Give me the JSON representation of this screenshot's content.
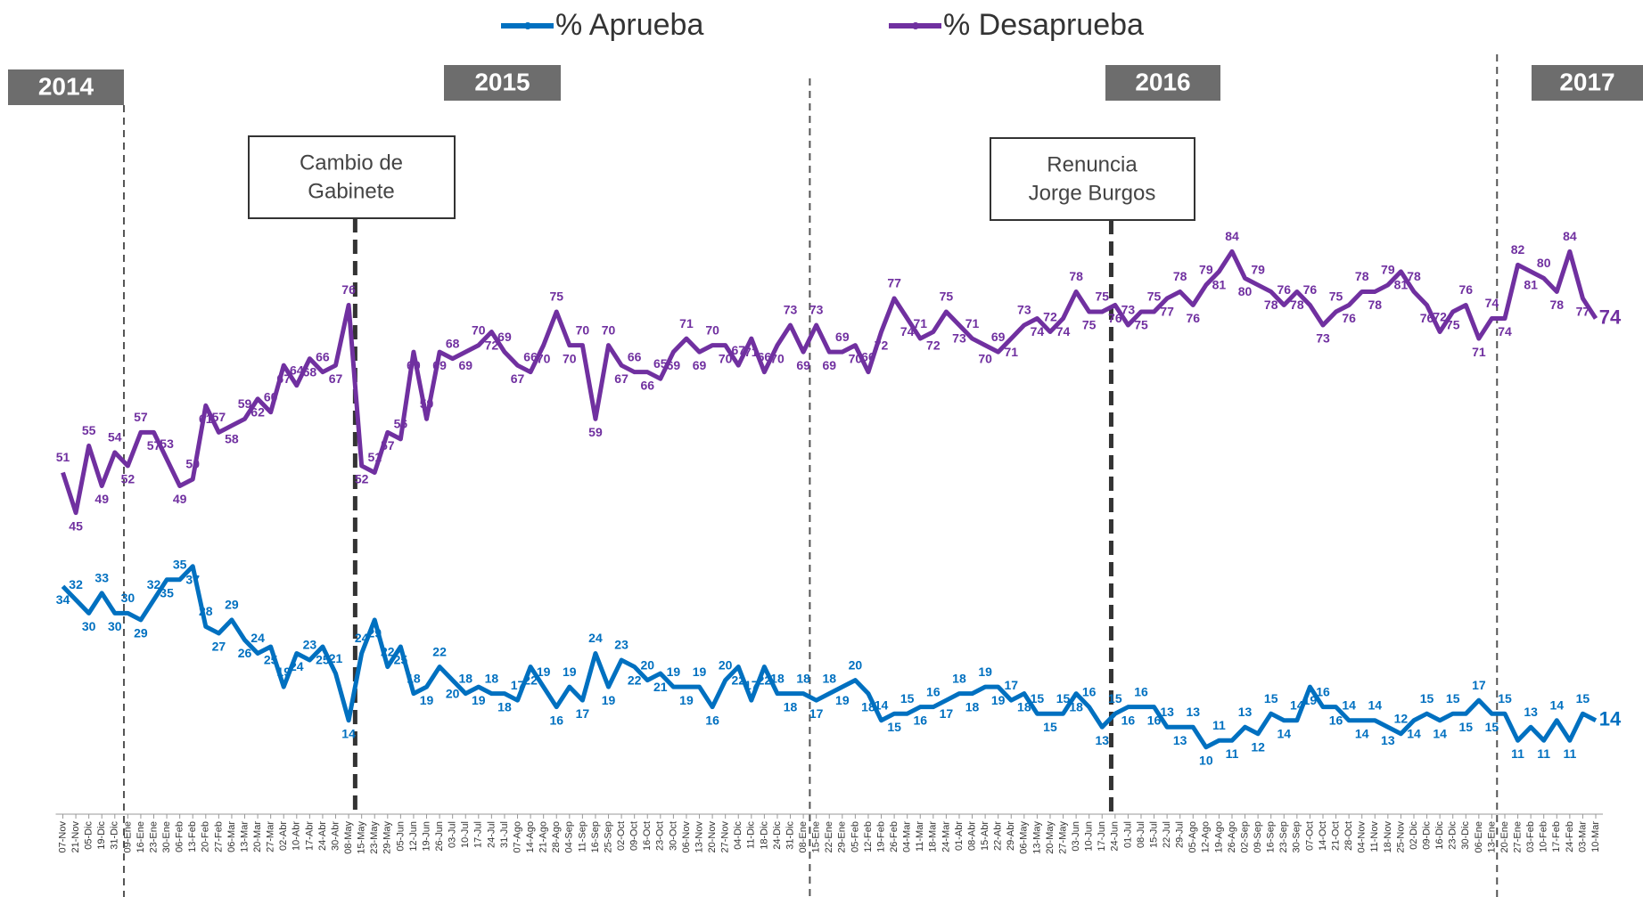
{
  "chart_data": {
    "type": "line",
    "legend": "top",
    "years": [
      "2014",
      "2015",
      "2016",
      "2017"
    ],
    "annotations": [
      [
        "Cambio de",
        "Gabinete"
      ],
      [
        "Renuncia",
        "Jorge Burgos"
      ]
    ],
    "categories": [
      "07-Nov",
      "21-Nov",
      "05-Dic",
      "19-Dic",
      "31-Dic",
      "09-Ene",
      "16-Ene",
      "23-Ene",
      "30-Ene",
      "06-Feb",
      "13-Feb",
      "20-Feb",
      "27-Feb",
      "06-Mar",
      "13-Mar",
      "20-Mar",
      "27-Mar",
      "02-Abr",
      "10-Abr",
      "17-Abr",
      "24-Abr",
      "30-Abr",
      "08-May",
      "15-May",
      "23-May",
      "29-May",
      "05-Jun",
      "12-Jun",
      "19-Jun",
      "26-Jun",
      "03-Jul",
      "10-Jul",
      "17-Jul",
      "24-Jul",
      "31-Jul",
      "07-Ago",
      "14-Ago",
      "21-Ago",
      "28-Ago",
      "04-Sep",
      "11-Sep",
      "16-Sep",
      "25-Sep",
      "02-Oct",
      "09-Oct",
      "16-Oct",
      "23-Oct",
      "30-Oct",
      "06-Nov",
      "13-Nov",
      "20-Nov",
      "27-Nov",
      "04-Dic",
      "11-Dic",
      "18-Dic",
      "24-Dic",
      "31-Dic",
      "08-Ene",
      "15-Ene",
      "22-Ene",
      "29-Ene",
      "05-Feb",
      "12-Feb",
      "19-Feb",
      "26-Feb",
      "04-Mar",
      "11-Mar",
      "18-Mar",
      "24-Mar",
      "01-Abr",
      "08-Abr",
      "15-Abr",
      "22-Abr",
      "29-Abr",
      "06-May",
      "13-May",
      "20-May",
      "27-May",
      "03-Jun",
      "10-Jun",
      "17-Jun",
      "24-Jun",
      "01-Jul",
      "08-Jul",
      "15-Jul",
      "22-Jul",
      "29-Jul",
      "05-Ago",
      "12-Ago",
      "19-Ago",
      "26-Ago",
      "02-Sep",
      "09-Sep",
      "16-Sep",
      "23-Sep",
      "30-Sep",
      "07-Oct",
      "14-Oct",
      "21-Oct",
      "28-Oct",
      "04-Nov",
      "11-Nov",
      "18-Nov",
      "25-Nov",
      "02-Dic",
      "09-Dic",
      "16-Dic",
      "23-Dic",
      "30-Dic",
      "06-Ene",
      "13-Ene",
      "20-Ene",
      "27-Ene",
      "03-Feb",
      "10-Feb",
      "17-Feb",
      "24-Feb",
      "03-Mar",
      "10-Mar"
    ],
    "series": [
      {
        "name": "% Aprueba",
        "color": "#0070c0",
        "values": [
          34,
          32,
          30,
          33,
          30,
          30,
          29,
          32,
          35,
          35,
          37,
          28,
          27,
          29,
          26,
          24,
          25,
          19,
          24,
          23,
          25,
          21,
          14,
          24,
          29,
          22,
          25,
          18,
          19,
          22,
          20,
          18,
          19,
          18,
          18,
          17,
          22,
          19,
          16,
          19,
          17,
          24,
          19,
          23,
          22,
          20,
          21,
          19,
          19,
          19,
          16,
          20,
          22,
          17,
          22,
          18,
          18,
          18,
          17,
          18,
          19,
          20,
          18,
          14,
          15,
          15,
          16,
          16,
          17,
          18,
          18,
          19,
          19,
          17,
          18,
          15,
          15,
          15,
          18,
          16,
          13,
          15,
          16,
          16,
          16,
          13,
          13,
          13,
          10,
          11,
          11,
          13,
          12,
          15,
          14,
          14,
          19,
          16,
          16,
          14,
          14,
          14,
          13,
          12,
          14,
          15,
          14,
          15,
          15,
          17,
          15,
          15,
          11,
          13,
          11,
          14,
          11,
          15,
          14
        ]
      },
      {
        "name": "% Desaprueba",
        "color": "#7030a0",
        "values": [
          51,
          45,
          55,
          49,
          54,
          52,
          57,
          57,
          53,
          49,
          50,
          61,
          57,
          58,
          59,
          62,
          60,
          67,
          64,
          68,
          66,
          67,
          76,
          52,
          51,
          57,
          56,
          69,
          59,
          69,
          68,
          69,
          70,
          72,
          69,
          67,
          66,
          70,
          75,
          70,
          70,
          59,
          70,
          67,
          66,
          66,
          65,
          69,
          71,
          69,
          70,
          70,
          67,
          71,
          66,
          70,
          73,
          69,
          73,
          69,
          69,
          70,
          66,
          72,
          77,
          74,
          71,
          72,
          75,
          73,
          71,
          70,
          69,
          71,
          73,
          74,
          72,
          74,
          78,
          75,
          75,
          76,
          73,
          75,
          75,
          77,
          78,
          76,
          79,
          81,
          84,
          80,
          79,
          78,
          76,
          78,
          76,
          73,
          75,
          76,
          78,
          78,
          79,
          81,
          78,
          76,
          72,
          75,
          76,
          71,
          74,
          74,
          82,
          81,
          80,
          78,
          84,
          77,
          74
        ]
      }
    ],
    "ylim": [
      0,
      100
    ]
  }
}
